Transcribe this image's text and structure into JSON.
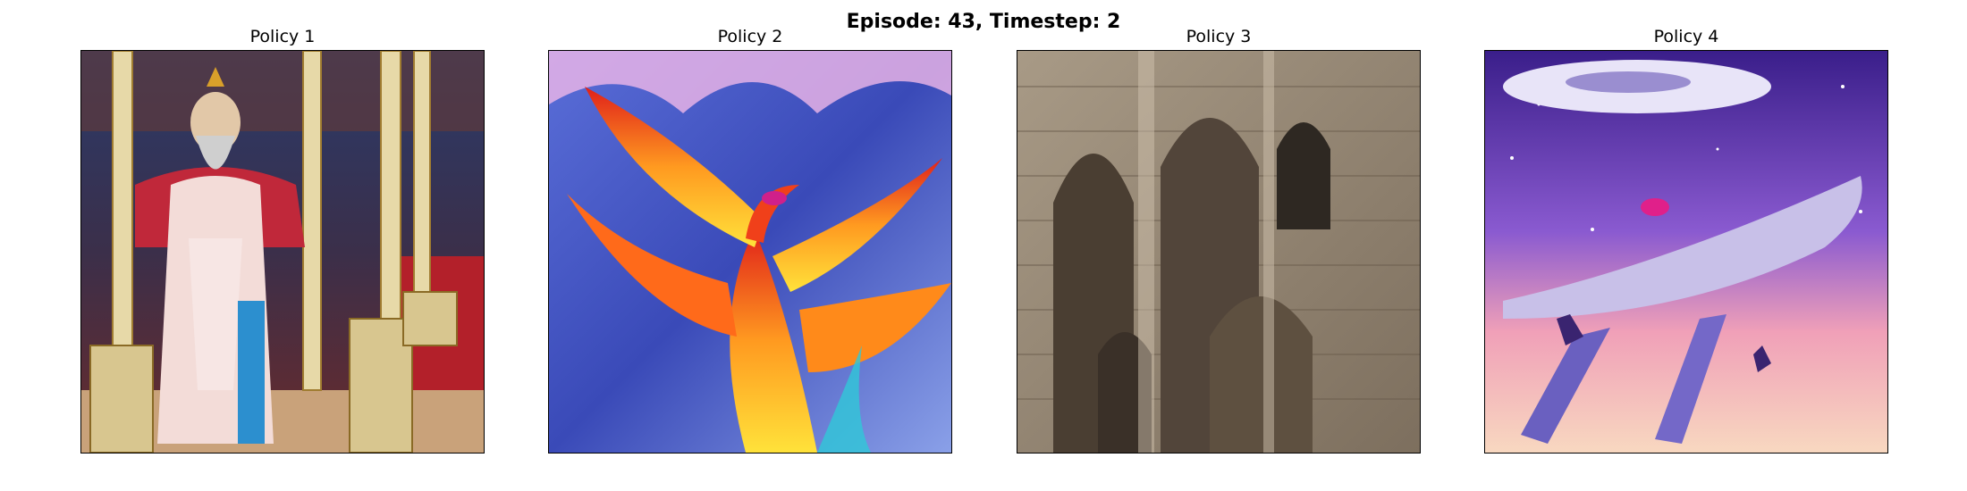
{
  "figure": {
    "suptitle": "Episode: 43, Timestep: 2"
  },
  "panels": [
    {
      "title": "Policy 1",
      "depicts": "tapestry-enthroned-king"
    },
    {
      "title": "Policy 2",
      "depicts": "phoenix-drawing"
    },
    {
      "title": "Policy 3",
      "depicts": "gothic-stone-arches"
    },
    {
      "title": "Policy 4",
      "depicts": "space-ships-scene"
    }
  ]
}
